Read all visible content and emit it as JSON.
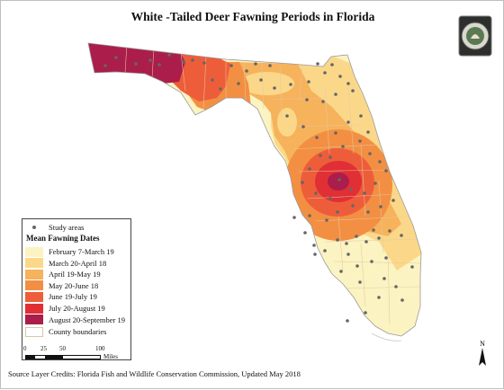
{
  "title": "White -Tailed Deer Fawning Periods in Florida",
  "legend": {
    "study_areas_label": "Study areas",
    "heading": "Mean Fawning Dates",
    "classes": [
      {
        "label": "February 7-March 19",
        "color": "#fbf3c2"
      },
      {
        "label": "March 20-April 18",
        "color": "#fbd889"
      },
      {
        "label": "April 19-May 19",
        "color": "#f7b25c"
      },
      {
        "label": "May 20-June 18",
        "color": "#f38f43"
      },
      {
        "label": "June 19-July 19",
        "color": "#ee5d3a"
      },
      {
        "label": "July 20-August 19",
        "color": "#e02f35"
      },
      {
        "label": "August 20-September 19",
        "color": "#ab1d4a"
      }
    ],
    "county_label": "County boundaries"
  },
  "scale_bar": {
    "ticks": [
      "0",
      "25",
      "50",
      "100"
    ],
    "unit": "Miles"
  },
  "north_label": "N",
  "source": "Source Layer Credits: Florida Fish and Wildlife Conservation Commission, Updated May 2018",
  "colors": {
    "background": "#ffffff",
    "county_line": "#e4c9a0",
    "point": "#666666",
    "outline": "#9a9a9a"
  },
  "seal": {
    "name": "Florida Fish and Wildlife Conservation Commission seal"
  }
}
